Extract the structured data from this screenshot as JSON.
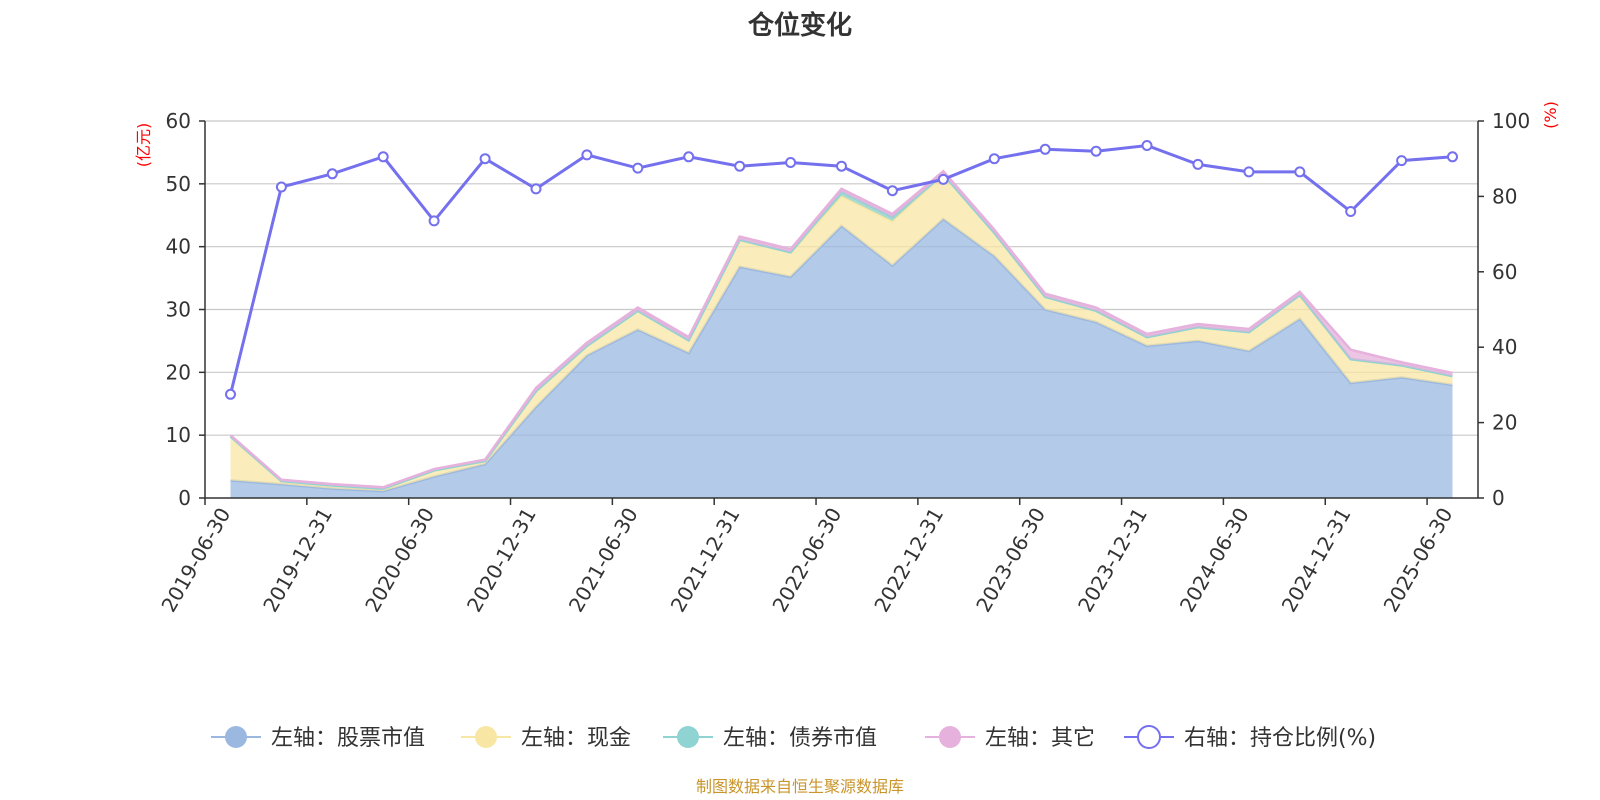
{
  "chart_data": {
    "type": "area",
    "title": "仓位变化",
    "left_axis_unit": "(亿元)",
    "right_axis_unit": "(%)",
    "ylim_left": [
      0,
      60
    ],
    "ylim_right": [
      0,
      100
    ],
    "left_ticks": [
      "0",
      "10",
      "20",
      "30",
      "40",
      "50",
      "60"
    ],
    "right_ticks": [
      "0",
      "20",
      "40",
      "60",
      "80",
      "100"
    ],
    "grid": true,
    "legend_position": "bottom",
    "x": [
      "2019-06-30",
      "2019-09-30",
      "2019-12-31",
      "2020-03-31",
      "2020-06-30",
      "2020-09-30",
      "2020-12-31",
      "2021-03-31",
      "2021-06-30",
      "2021-09-30",
      "2021-12-31",
      "2022-03-31",
      "2022-06-30",
      "2022-09-30",
      "2022-12-31",
      "2023-03-31",
      "2023-06-30",
      "2023-09-30",
      "2023-12-31",
      "2024-03-31",
      "2024-06-30",
      "2024-09-30",
      "2024-12-31",
      "2025-03-31",
      "2025-06-30"
    ],
    "series": [
      {
        "name": "左轴：股票市值",
        "axis": "left",
        "color": "#9ab8e0",
        "values": [
          2.8,
          2.2,
          1.5,
          1.1,
          3.4,
          5.4,
          14.5,
          22.7,
          26.8,
          23.1,
          36.8,
          35.2,
          43.3,
          37.0,
          44.4,
          38.5,
          30.0,
          28.0,
          24.2,
          25.0,
          23.4,
          28.5,
          18.3,
          19.2,
          18.0
        ]
      },
      {
        "name": "左轴：现金",
        "axis": "left",
        "color": "#f8e6a4",
        "values": [
          7.0,
          0.5,
          0.5,
          0.4,
          1.0,
          0.5,
          2.5,
          1.5,
          3.0,
          2.0,
          4.3,
          3.9,
          4.8,
          7.1,
          7.1,
          3.7,
          2.0,
          1.8,
          1.4,
          2.2,
          3.0,
          3.8,
          3.8,
          1.9,
          1.4
        ]
      },
      {
        "name": "左轴：债券市值",
        "axis": "left",
        "color": "#8fd3d3",
        "values": [
          0,
          0,
          0,
          0,
          0,
          0,
          0,
          0,
          0,
          0,
          0,
          0,
          0.6,
          0.6,
          0,
          0,
          0,
          0,
          0,
          0,
          0,
          0,
          0,
          0,
          0
        ]
      },
      {
        "name": "左轴：其它",
        "axis": "left",
        "color": "#e6b1dc",
        "values": [
          0.2,
          0.2,
          0.2,
          0.2,
          0.2,
          0.2,
          0.5,
          0.5,
          0.5,
          0.5,
          0.5,
          0.5,
          0.5,
          0.5,
          0.5,
          0.5,
          0.5,
          0.5,
          0.5,
          0.5,
          0.5,
          0.5,
          1.5,
          0.5,
          0.5
        ]
      },
      {
        "name": "右轴：持仓比例(%)",
        "axis": "right",
        "color": "#7470ee",
        "values": [
          27.5,
          82.5,
          86.0,
          90.5,
          73.5,
          90.0,
          82.0,
          91.0,
          87.5,
          90.5,
          88.0,
          89.0,
          88.0,
          81.5,
          84.5,
          90.0,
          92.5,
          92.0,
          93.5,
          88.5,
          86.5,
          86.5,
          76.0,
          89.5,
          90.5
        ]
      }
    ]
  },
  "footer": {
    "source": "制图数据来自恒生聚源数据库"
  }
}
